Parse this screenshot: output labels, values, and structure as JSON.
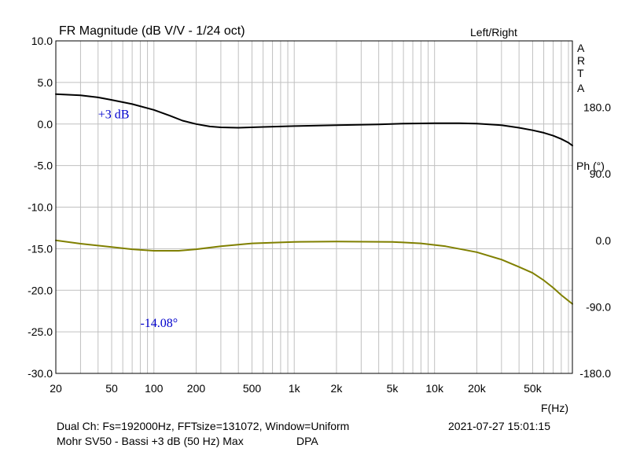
{
  "chart_data": {
    "type": "line",
    "title": "FR Magnitude (dB V/V - 1/24 oct)",
    "channel_label": "Left/Right",
    "brand_letters": [
      "A",
      "R",
      "T",
      "A"
    ],
    "x_label": "F(Hz)",
    "x_scale": "log",
    "x_range": [
      20,
      96000
    ],
    "x_ticks": [
      {
        "v": 20,
        "label": "20"
      },
      {
        "v": 50,
        "label": "50"
      },
      {
        "v": 100,
        "label": "100"
      },
      {
        "v": 200,
        "label": "200"
      },
      {
        "v": 500,
        "label": "500"
      },
      {
        "v": 1000,
        "label": "1k"
      },
      {
        "v": 2000,
        "label": "2k"
      },
      {
        "v": 5000,
        "label": "5k"
      },
      {
        "v": 10000,
        "label": "10k"
      },
      {
        "v": 20000,
        "label": "20k"
      },
      {
        "v": 50000,
        "label": "50k"
      }
    ],
    "y_left_range": [
      -30,
      10
    ],
    "y_left_ticks": [
      {
        "v": 10,
        "label": "10.0"
      },
      {
        "v": 5,
        "label": "5.0"
      },
      {
        "v": 0,
        "label": "0.0"
      },
      {
        "v": -5,
        "label": "-5.0"
      },
      {
        "v": -10,
        "label": "-10.0"
      },
      {
        "v": -15,
        "label": "-15.0"
      },
      {
        "v": -20,
        "label": "-20.0"
      },
      {
        "v": -25,
        "label": "-25.0"
      },
      {
        "v": -30,
        "label": "-30.0"
      }
    ],
    "y_right_label": "Ph (°)",
    "y_right_range": [
      -180,
      270
    ],
    "y_right_ticks": [
      {
        "v": 180,
        "label": "180.0"
      },
      {
        "v": 90,
        "label": "90.0"
      },
      {
        "v": 0,
        "label": "0.0"
      },
      {
        "v": -90,
        "label": "-90.0"
      },
      {
        "v": -180,
        "label": "-180.0"
      }
    ],
    "grid": true,
    "series": [
      {
        "axis": "left",
        "color": "#000000",
        "points": [
          [
            20,
            3.6
          ],
          [
            30,
            3.45
          ],
          [
            40,
            3.2
          ],
          [
            50,
            2.9
          ],
          [
            70,
            2.4
          ],
          [
            100,
            1.7
          ],
          [
            130,
            1.0
          ],
          [
            160,
            0.4
          ],
          [
            200,
            0.0
          ],
          [
            250,
            -0.3
          ],
          [
            300,
            -0.4
          ],
          [
            400,
            -0.45
          ],
          [
            600,
            -0.35
          ],
          [
            1000,
            -0.25
          ],
          [
            2000,
            -0.15
          ],
          [
            4000,
            -0.05
          ],
          [
            6000,
            0.05
          ],
          [
            10000,
            0.1
          ],
          [
            15000,
            0.1
          ],
          [
            20000,
            0.05
          ],
          [
            30000,
            -0.15
          ],
          [
            40000,
            -0.45
          ],
          [
            50000,
            -0.75
          ],
          [
            60000,
            -1.05
          ],
          [
            70000,
            -1.4
          ],
          [
            80000,
            -1.8
          ],
          [
            90000,
            -2.25
          ],
          [
            96000,
            -2.6
          ]
        ]
      },
      {
        "axis": "right",
        "color": "#808000",
        "points": [
          [
            20,
            0
          ],
          [
            30,
            -4.5
          ],
          [
            50,
            -9
          ],
          [
            70,
            -12
          ],
          [
            100,
            -14
          ],
          [
            150,
            -14.08
          ],
          [
            200,
            -12
          ],
          [
            300,
            -8
          ],
          [
            500,
            -4
          ],
          [
            1000,
            -2
          ],
          [
            2000,
            -1.5
          ],
          [
            5000,
            -2
          ],
          [
            8000,
            -4
          ],
          [
            12000,
            -8
          ],
          [
            20000,
            -16
          ],
          [
            30000,
            -26
          ],
          [
            40000,
            -36
          ],
          [
            50000,
            -44
          ],
          [
            60000,
            -54
          ],
          [
            70000,
            -64
          ],
          [
            80000,
            -74
          ],
          [
            96000,
            -86
          ]
        ]
      }
    ],
    "annotations": [
      {
        "text": "+3 dB",
        "x": 40,
        "y": 0.7,
        "axis": "left"
      },
      {
        "text": "-14.08°",
        "x": 80,
        "y": -24.4,
        "axis": "right"
      }
    ],
    "footer": {
      "line1": "Dual Ch: Fs=192000Hz, FFTsize=131072, Window=Uniform",
      "line2": "Mohr SV50 - Bassi +3 dB (50 Hz) Max",
      "tag": "DPA",
      "timestamp": "2021-07-27  15:01:15"
    }
  }
}
